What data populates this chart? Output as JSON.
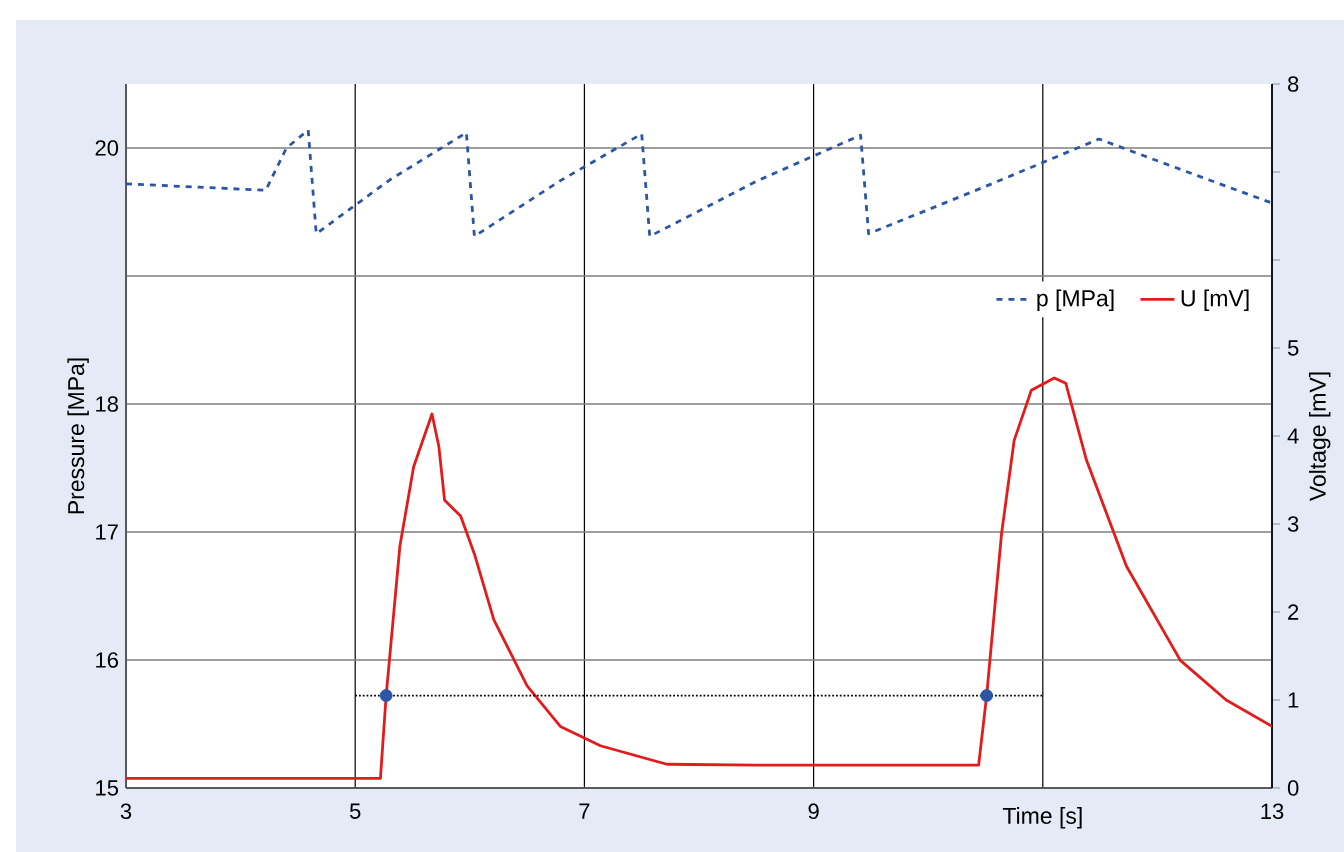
{
  "chart_data": {
    "type": "line",
    "xlabel": "Time [s]",
    "ylabel": "Pressure [MPa]",
    "y2label": "Voltage [mV]",
    "xlim": [
      3,
      13
    ],
    "xticks": [
      3,
      5,
      7,
      9,
      {
        "value": 11,
        "label": null
      },
      13
    ],
    "ylim": [
      15,
      20.5
    ],
    "yticks": [
      15,
      16,
      17,
      18,
      {
        "value": 19,
        "label": null
      },
      20
    ],
    "y2lim": [
      0,
      8
    ],
    "y2ticks": [
      0,
      1,
      2,
      3,
      4,
      5,
      {
        "value": 6,
        "label": null
      },
      {
        "value": 7,
        "label": null
      },
      8
    ],
    "grid": true,
    "legend": "top right",
    "marker": "none",
    "series": [
      {
        "name": "p [MPa]",
        "color": "#2b55a5",
        "line_style": "dashed",
        "x": [
          3,
          4.22,
          4.4,
          4.59,
          4.66,
          5.3,
          5.97,
          6.04,
          6.8,
          7.5,
          7.57,
          8.5,
          9.41,
          9.48,
          10.5,
          11.49,
          12.3,
          13
        ],
        "values": [
          19.72,
          19.67,
          20.0,
          20.14,
          19.33,
          19.75,
          20.12,
          19.31,
          19.75,
          20.11,
          19.31,
          19.74,
          20.1,
          19.33,
          19.7,
          20.07,
          19.8,
          19.57
        ]
      },
      {
        "name": "U [mV]",
        "color": "#e31b1b",
        "axis": "y2",
        "line_style": "solid",
        "x": [
          3,
          4.0,
          5.22,
          5.27,
          5.39,
          5.51,
          5.67,
          5.73,
          5.78,
          5.92,
          6.04,
          6.21,
          6.5,
          6.79,
          7.14,
          7.72,
          8.5,
          9.5,
          10.44,
          10.51,
          10.64,
          10.75,
          10.9,
          11.1,
          11.2,
          11.38,
          11.73,
          12.2,
          12.6,
          13
        ],
        "values": [
          0.11,
          0.11,
          0.11,
          1.05,
          2.75,
          3.65,
          4.25,
          3.88,
          3.27,
          3.09,
          2.66,
          1.91,
          1.16,
          0.7,
          0.48,
          0.27,
          0.26,
          0.26,
          0.26,
          1.05,
          2.89,
          3.95,
          4.52,
          4.66,
          4.6,
          3.73,
          2.52,
          1.45,
          1.0,
          0.7
        ]
      },
      {
        "type": "line",
        "axis": "y2",
        "color": "#000000",
        "line_style": "dotted",
        "x": [
          5,
          11
        ],
        "values": [
          1.05,
          1.05
        ]
      },
      {
        "type": "scatter",
        "axis": "y2",
        "color": "#2b55a5",
        "marker": "circle",
        "x": [
          5.27,
          10.51
        ],
        "values": [
          1.05,
          1.05
        ]
      }
    ]
  }
}
